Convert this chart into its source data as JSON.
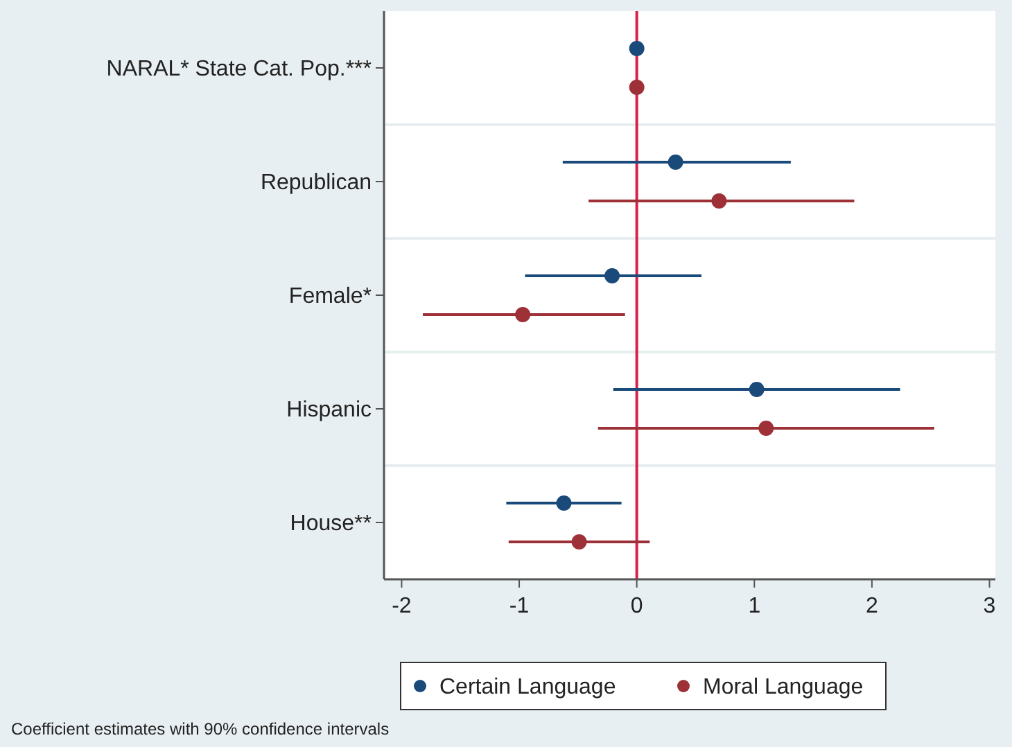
{
  "chart_data": {
    "type": "scatter",
    "orientation": "horizontal",
    "categories": [
      "NARAL* State Cat. Pop.***",
      "Republican",
      "Female*",
      "Hispanic",
      "House**"
    ],
    "series": [
      {
        "name": "Certain Language",
        "color": "#1a4a7a",
        "values": [
          0.0,
          0.33,
          -0.21,
          1.02,
          -0.62
        ],
        "errors": [
          null,
          [
            -0.63,
            1.31
          ],
          [
            -0.95,
            0.55
          ],
          [
            -0.2,
            2.24
          ],
          [
            -1.11,
            -0.13
          ]
        ]
      },
      {
        "name": "Moral Language",
        "color": "#9e3038",
        "values": [
          0.0,
          0.7,
          -0.97,
          1.1,
          -0.49
        ],
        "errors": [
          null,
          [
            -0.41,
            1.85
          ],
          [
            -1.82,
            -0.1
          ],
          [
            -0.33,
            2.53
          ],
          [
            -1.09,
            0.11
          ]
        ]
      }
    ],
    "xlim": [
      -2.15,
      3.05
    ],
    "xticks": [
      -2,
      -1,
      0,
      1,
      2,
      3
    ],
    "ref_lines": [
      {
        "axis": "x",
        "value": 0,
        "color": "#d6204a"
      }
    ],
    "grid": "y",
    "legend": "bottom",
    "marker": "circle",
    "annotations": [
      "Coefficient estimates with 90% confidence intervals"
    ]
  }
}
